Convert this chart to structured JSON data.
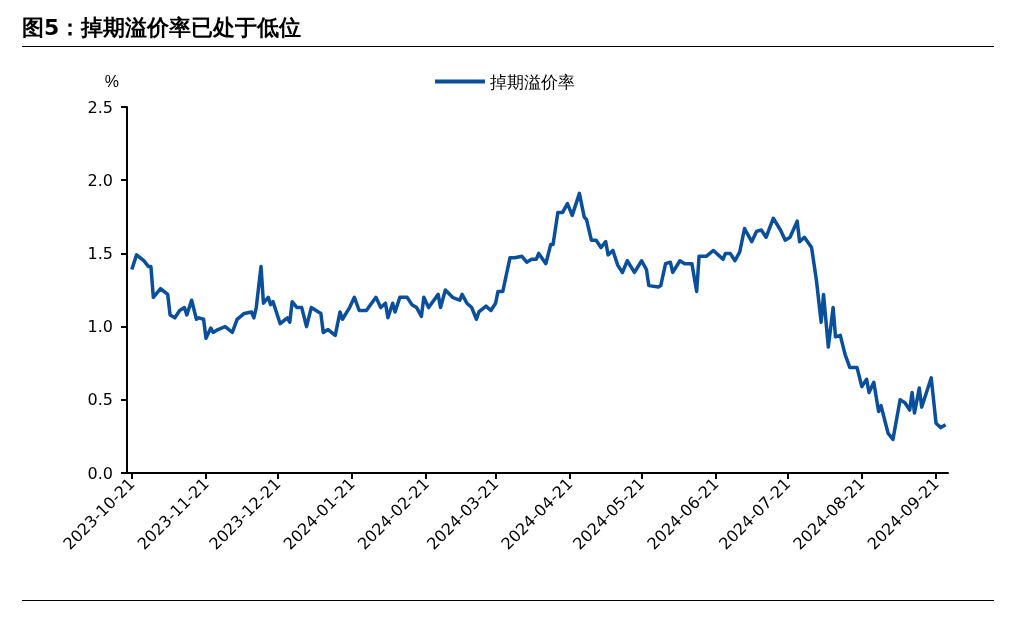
{
  "chart_data": {
    "type": "line",
    "title": "图5：掉期溢价率已处于低位",
    "ylabel": "%",
    "x": [
      "2023-10-21",
      "2023-10-23",
      "2023-10-26",
      "2023-10-28",
      "2023-10-29",
      "2023-10-30",
      "2023-11-02",
      "2023-11-05",
      "2023-11-06",
      "2023-11-08",
      "2023-11-10",
      "2023-11-12",
      "2023-11-13",
      "2023-11-15",
      "2023-11-17",
      "2023-11-18",
      "2023-11-20",
      "2023-11-21",
      "2023-11-23",
      "2023-11-24",
      "2023-11-26",
      "2023-11-29",
      "2023-12-02",
      "2023-12-04",
      "2023-12-07",
      "2023-12-10",
      "2023-12-11",
      "2023-12-12",
      "2023-12-14",
      "2023-12-15",
      "2023-12-17",
      "2023-12-18",
      "2023-12-19",
      "2023-12-22",
      "2023-12-25",
      "2023-12-26",
      "2023-12-27",
      "2023-12-29",
      "2023-12-31",
      "2024-01-02",
      "2024-01-04",
      "2024-01-08",
      "2024-01-09",
      "2024-01-11",
      "2024-01-14",
      "2024-01-16",
      "2024-01-17",
      "2024-01-20",
      "2024-01-22",
      "2024-01-24",
      "2024-01-27",
      "2024-01-31",
      "2024-02-02",
      "2024-02-04",
      "2024-02-05",
      "2024-02-07",
      "2024-02-08",
      "2024-02-10",
      "2024-02-13",
      "2024-02-15",
      "2024-02-17",
      "2024-02-19",
      "2024-02-20",
      "2024-02-22",
      "2024-02-26",
      "2024-02-27",
      "2024-02-29",
      "2024-03-03",
      "2024-03-06",
      "2024-03-07",
      "2024-03-09",
      "2024-03-11",
      "2024-03-13",
      "2024-03-14",
      "2024-03-17",
      "2024-03-19",
      "2024-03-21",
      "2024-03-22",
      "2024-03-24",
      "2024-03-27",
      "2024-03-29",
      "2024-04-01",
      "2024-04-03",
      "2024-04-05",
      "2024-04-07",
      "2024-04-08",
      "2024-04-11",
      "2024-04-13",
      "2024-04-14",
      "2024-04-16",
      "2024-04-18",
      "2024-04-20",
      "2024-04-22",
      "2024-04-25",
      "2024-04-27",
      "2024-04-28",
      "2024-04-30",
      "2024-05-02",
      "2024-05-04",
      "2024-05-06",
      "2024-05-07",
      "2024-05-09",
      "2024-05-11",
      "2024-05-13",
      "2024-05-15",
      "2024-05-18",
      "2024-05-21",
      "2024-05-23",
      "2024-05-24",
      "2024-05-28",
      "2024-05-29",
      "2024-05-31",
      "2024-06-02",
      "2024-06-03",
      "2024-06-06",
      "2024-06-08",
      "2024-06-11",
      "2024-06-13",
      "2024-06-14",
      "2024-06-17",
      "2024-06-20",
      "2024-06-22",
      "2024-06-24",
      "2024-06-25",
      "2024-06-27",
      "2024-06-29",
      "2024-07-01",
      "2024-07-03",
      "2024-07-06",
      "2024-07-08",
      "2024-07-10",
      "2024-07-12",
      "2024-07-15",
      "2024-07-18",
      "2024-07-20",
      "2024-07-22",
      "2024-07-25",
      "2024-07-26",
      "2024-07-28",
      "2024-07-31",
      "2024-08-02",
      "2024-08-04",
      "2024-08-05",
      "2024-08-07",
      "2024-08-09",
      "2024-08-10",
      "2024-08-12",
      "2024-08-14",
      "2024-08-16",
      "2024-08-19",
      "2024-08-21",
      "2024-08-23",
      "2024-08-24",
      "2024-08-26",
      "2024-08-28",
      "2024-08-29",
      "2024-09-01",
      "2024-09-03",
      "2024-09-06",
      "2024-09-08",
      "2024-09-10",
      "2024-09-11",
      "2024-09-12",
      "2024-09-14",
      "2024-09-15",
      "2024-09-17",
      "2024-09-19",
      "2024-09-21",
      "2024-09-23",
      "2024-09-25"
    ],
    "series": [
      {
        "name": "掉期溢价率",
        "color": "#0a4f9c",
        "values": [
          1.39,
          1.49,
          1.45,
          1.41,
          1.41,
          1.2,
          1.26,
          1.22,
          1.08,
          1.06,
          1.11,
          1.13,
          1.08,
          1.18,
          1.05,
          1.06,
          1.05,
          0.92,
          0.99,
          0.96,
          0.98,
          1.0,
          0.96,
          1.05,
          1.09,
          1.1,
          1.06,
          1.13,
          1.41,
          1.16,
          1.2,
          1.15,
          1.17,
          1.02,
          1.06,
          1.03,
          1.17,
          1.13,
          1.13,
          1.0,
          1.13,
          1.09,
          0.96,
          0.98,
          0.94,
          1.1,
          1.05,
          1.13,
          1.2,
          1.11,
          1.11,
          1.2,
          1.13,
          1.16,
          1.06,
          1.16,
          1.1,
          1.2,
          1.2,
          1.15,
          1.13,
          1.07,
          1.2,
          1.13,
          1.22,
          1.13,
          1.25,
          1.2,
          1.18,
          1.22,
          1.16,
          1.13,
          1.05,
          1.1,
          1.14,
          1.11,
          1.16,
          1.24,
          1.24,
          1.47,
          1.47,
          1.48,
          1.44,
          1.46,
          1.46,
          1.5,
          1.43,
          1.56,
          1.56,
          1.78,
          1.78,
          1.84,
          1.76,
          1.91,
          1.75,
          1.73,
          1.59,
          1.59,
          1.54,
          1.58,
          1.49,
          1.52,
          1.42,
          1.37,
          1.45,
          1.37,
          1.45,
          1.39,
          1.28,
          1.27,
          1.28,
          1.43,
          1.44,
          1.37,
          1.45,
          1.43,
          1.43,
          1.24,
          1.48,
          1.48,
          1.52,
          1.49,
          1.46,
          1.5,
          1.5,
          1.45,
          1.51,
          1.67,
          1.58,
          1.65,
          1.66,
          1.61,
          1.74,
          1.66,
          1.59,
          1.61,
          1.72,
          1.58,
          1.61,
          1.54,
          1.32,
          1.03,
          1.22,
          0.86,
          1.13,
          0.93,
          0.94,
          0.81,
          0.72,
          0.72,
          0.59,
          0.64,
          0.55,
          0.62,
          0.42,
          0.46,
          0.27,
          0.23,
          0.5,
          0.48,
          0.43,
          0.55,
          0.41,
          0.58,
          0.45,
          0.55,
          0.65,
          0.34,
          0.31,
          0.33
        ]
      }
    ],
    "xlim": [
      "2023-10-19",
      "2024-09-26"
    ],
    "xticks": [
      "2023-10-21",
      "2023-11-21",
      "2023-12-21",
      "2024-01-21",
      "2024-02-21",
      "2024-03-21",
      "2024-04-21",
      "2024-05-21",
      "2024-06-21",
      "2024-07-21",
      "2024-08-21",
      "2024-09-21"
    ],
    "ylim": [
      0,
      2.5
    ],
    "yticks": [
      {
        "value": 0,
        "label": "0.0"
      },
      0.5,
      {
        "value": 1,
        "label": "1.0"
      },
      1.5,
      {
        "value": 2,
        "label": "2.0"
      },
      2.5
    ],
    "grid": false,
    "legend": "top",
    "marker": "none",
    "line_style": "solid"
  }
}
